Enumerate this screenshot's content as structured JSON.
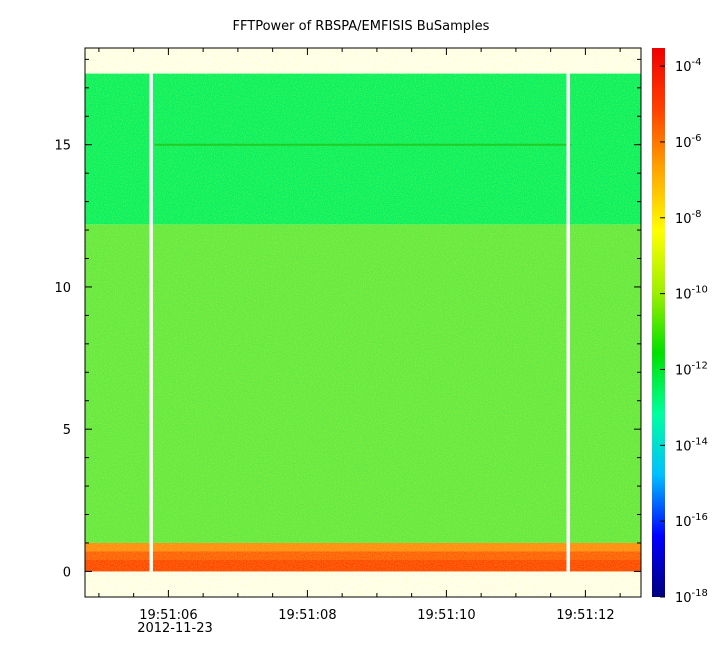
{
  "chart_data": {
    "type": "heatmap",
    "title": "FFTPower of RBSPA/EMFISIS  BuSamples",
    "xlabel": "",
    "ylabel": "",
    "x_tick_labels": [
      "19:51:06",
      "19:51:08",
      "19:51:10",
      "19:51:12"
    ],
    "x_date_label": "2012-11-23",
    "x_range": [
      "19:51:04.8",
      "19:51:12.8"
    ],
    "y_ticks": [
      0,
      5,
      10,
      15
    ],
    "ylim": [
      -0.9,
      18.4
    ],
    "colorbar": {
      "scale": "log",
      "range": [
        1e-18,
        0.0003
      ],
      "tick_exponents": [
        -4,
        -6,
        -8,
        -10,
        -12,
        -14,
        -16,
        -18
      ],
      "tick_base": "10",
      "colors": [
        "#00007f",
        "#0000ff",
        "#00bfff",
        "#00ff9f",
        "#00e000",
        "#9fef00",
        "#ffff00",
        "#ffa500",
        "#ff4000",
        "#ee0000"
      ]
    },
    "bands": [
      {
        "y_range": [
          0,
          1.0
        ],
        "log10_power": -6.5,
        "color": "#ff5a10"
      },
      {
        "y_range": [
          1.0,
          12.2
        ],
        "log10_power": -10.5,
        "color": "#5ee84a"
      },
      {
        "y_range": [
          12.2,
          17.5
        ],
        "log10_power": -11.5,
        "color": "#00f06a"
      }
    ],
    "line_feature": {
      "y": 15.0,
      "x_range": [
        "19:51:05.8",
        "19:51:11.8"
      ]
    },
    "data_gaps": [
      "19:51:05.75",
      "19:51:11.75"
    ]
  }
}
